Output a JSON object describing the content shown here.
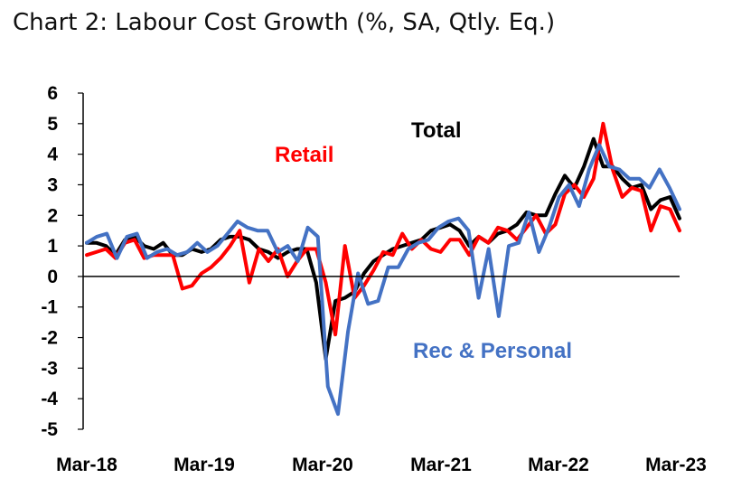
{
  "chart_data": {
    "type": "line",
    "title": "Chart 2: Labour Cost Growth (%, SA, Qtly. Eq.)",
    "xlabel": "",
    "ylabel": "",
    "ylim": [
      -5,
      6
    ],
    "yticks": [
      -5,
      -4,
      -3,
      -2,
      -1,
      0,
      1,
      2,
      3,
      4,
      5,
      6
    ],
    "xtick_labels": [
      "Mar-18",
      "Mar-19",
      "Mar-20",
      "Mar-21",
      "Mar-22",
      "Mar-23"
    ],
    "x_start": "Mar-18",
    "x_end": "Mar-23",
    "grid": false,
    "zero_line": true,
    "series": [
      {
        "name": "Total",
        "color": "#000000",
        "values": [
          1.1,
          1.1,
          1.0,
          0.7,
          1.2,
          1.3,
          1.0,
          0.9,
          1.1,
          0.7,
          0.7,
          0.9,
          0.8,
          0.9,
          1.2,
          1.3,
          1.3,
          1.2,
          0.9,
          0.8,
          0.6,
          0.8,
          0.9,
          0.9,
          -0.2,
          -2.7,
          -0.8,
          -0.7,
          -0.5,
          0.1,
          0.5,
          0.7,
          0.9,
          1.0,
          1.1,
          1.2,
          1.5,
          1.6,
          1.7,
          1.5,
          1.0,
          1.3,
          1.1,
          1.4,
          1.5,
          1.7,
          2.1,
          2.0,
          2.0,
          2.7,
          3.3,
          2.9,
          3.6,
          4.5,
          3.6,
          3.6,
          3.2,
          2.9,
          3.0,
          2.2,
          2.5,
          2.6,
          1.9
        ]
      },
      {
        "name": "Retail",
        "color": "#ff0000",
        "values": [
          0.7,
          0.8,
          0.9,
          0.6,
          1.1,
          1.2,
          0.6,
          0.7,
          0.7,
          0.7,
          -0.4,
          -0.3,
          0.1,
          0.3,
          0.6,
          1.0,
          1.5,
          -0.2,
          0.9,
          0.5,
          0.9,
          0.0,
          0.5,
          0.9,
          0.9,
          -0.2,
          -1.9,
          1.0,
          -0.7,
          -0.3,
          0.2,
          0.8,
          0.7,
          1.4,
          0.9,
          1.2,
          0.9,
          0.8,
          1.2,
          1.2,
          0.7,
          1.3,
          1.1,
          1.6,
          1.5,
          1.2,
          1.6,
          2.0,
          1.4,
          1.7,
          2.7,
          3.0,
          2.6,
          3.2,
          5.0,
          3.5,
          2.6,
          2.9,
          2.8,
          1.5,
          2.3,
          2.2,
          1.5
        ]
      },
      {
        "name": "Rec & Personal",
        "color": "#4472c4",
        "values": [
          1.1,
          1.3,
          1.4,
          0.6,
          1.3,
          1.4,
          0.6,
          0.8,
          0.9,
          0.7,
          0.8,
          1.1,
          0.8,
          1.0,
          1.4,
          1.8,
          1.6,
          1.5,
          1.5,
          0.8,
          1.0,
          0.5,
          1.6,
          1.3,
          -3.6,
          -4.5,
          -1.8,
          0.1,
          -0.9,
          -0.8,
          0.3,
          0.3,
          0.9,
          1.1,
          1.2,
          1.6,
          1.8,
          1.9,
          1.5,
          -0.7,
          0.9,
          -1.3,
          1.0,
          1.1,
          2.1,
          0.8,
          1.6,
          2.6,
          3.0,
          2.3,
          3.5,
          4.3,
          3.6,
          3.5,
          3.2,
          3.2,
          2.9,
          3.5,
          2.9,
          2.2
        ]
      }
    ],
    "annotations": [
      {
        "text": "Total",
        "series": "Total",
        "color": "#000000"
      },
      {
        "text": "Retail",
        "series": "Retail",
        "color": "#ff0000"
      },
      {
        "text": "Rec & Personal",
        "series": "Rec & Personal",
        "color": "#4472c4"
      }
    ]
  }
}
